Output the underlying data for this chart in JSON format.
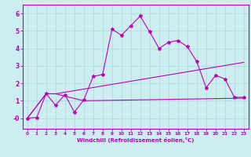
{
  "background_color": "#cceef0",
  "grid_color": "#aadddf",
  "line_color": "#bb00bb",
  "xlabel": "Windchill (Refroidissement éolien,°C)",
  "xlim": [
    -0.5,
    23.5
  ],
  "ylim": [
    -0.6,
    6.5
  ],
  "yticks": [
    0,
    1,
    2,
    3,
    4,
    5,
    6
  ],
  "ytick_labels": [
    "-0",
    "1",
    "2",
    "3",
    "4",
    "5",
    "6"
  ],
  "xticks": [
    0,
    1,
    2,
    3,
    4,
    5,
    6,
    7,
    8,
    9,
    10,
    11,
    12,
    13,
    14,
    15,
    16,
    17,
    18,
    19,
    20,
    21,
    22,
    23
  ],
  "series1_x": [
    0,
    1,
    2,
    3,
    4,
    5,
    6,
    7,
    8,
    9,
    10,
    11,
    12,
    13,
    14,
    15,
    16,
    17,
    18,
    19,
    20,
    21,
    22,
    23
  ],
  "series1_y": [
    0,
    0.05,
    1.4,
    0.75,
    1.35,
    0.35,
    1.05,
    2.4,
    2.5,
    5.1,
    4.75,
    5.3,
    5.85,
    4.95,
    4.0,
    4.35,
    4.45,
    4.1,
    3.25,
    1.75,
    2.45,
    2.25,
    1.2,
    1.2
  ],
  "series2_x": [
    0,
    2,
    3,
    23
  ],
  "series2_y": [
    0,
    1.4,
    1.4,
    3.2
  ],
  "series3_x": [
    0,
    2,
    3,
    6,
    23
  ],
  "series3_y": [
    0,
    1.4,
    1.4,
    1.0,
    1.15
  ]
}
